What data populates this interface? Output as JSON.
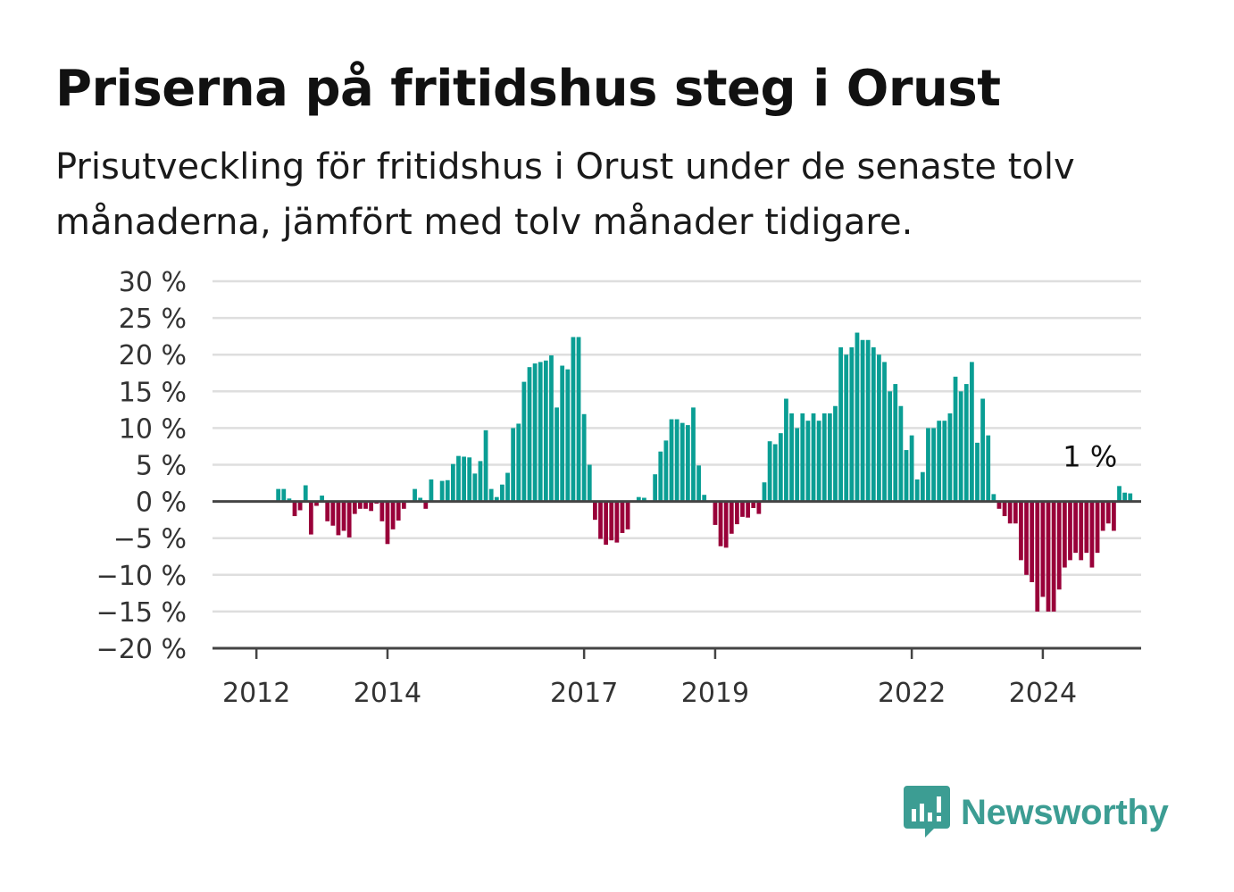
{
  "title": "Priserna på fritidshus steg i Orust",
  "subtitle": "Prisutveckling för fritidshus i Orust under de senaste tolv månaderna, jämfört med tolv månader tidigare.",
  "brand": {
    "name": "Newsworthy",
    "icon": "bar-chart-speech-bubble-icon",
    "color": "#3c9d93"
  },
  "chart_data": {
    "type": "bar",
    "y_ticks": [
      "30 %",
      "25 %",
      "20 %",
      "15 %",
      "10 %",
      "5 %",
      "0 %",
      "−5 %",
      "−10 %",
      "−15 %",
      "−20 %"
    ],
    "ylim": [
      -20,
      30
    ],
    "x_ticks": [
      {
        "label": "2012",
        "x": 2012
      },
      {
        "label": "2014",
        "x": 2014
      },
      {
        "label": "2017",
        "x": 2017
      },
      {
        "label": "2019",
        "x": 2019
      },
      {
        "label": "2022",
        "x": 2022
      },
      {
        "label": "2024",
        "x": 2024
      }
    ],
    "xlim": [
      2011.33,
      2025.5
    ],
    "x_start": 2011.667,
    "x_step": 0.08333,
    "values": [
      0,
      0,
      0,
      0,
      0,
      0,
      0,
      0,
      1.7,
      1.7,
      0.4,
      -2,
      -1.2,
      2.2,
      -4.5,
      -0.6,
      0.8,
      -2.7,
      -3.3,
      -4.6,
      -4,
      -4.9,
      -1.7,
      -1,
      -1,
      -1.3,
      -0.3,
      -2.7,
      -5.8,
      -3.8,
      -2.6,
      -1,
      0,
      1.7,
      0.5,
      -1,
      3,
      0,
      2.8,
      2.9,
      5.1,
      6.2,
      6.1,
      6,
      3.8,
      5.5,
      9.7,
      1.7,
      0.6,
      2.3,
      3.9,
      10,
      10.6,
      16.3,
      18.3,
      18.8,
      19,
      19.2,
      19.9,
      12.8,
      18.5,
      18,
      22.4,
      22.4,
      11.9,
      5,
      -2.5,
      -5.1,
      -5.9,
      -5.3,
      -5.6,
      -4.3,
      -3.8,
      0,
      0.6,
      0.5,
      0,
      3.7,
      6.8,
      8.3,
      11.2,
      11.2,
      10.7,
      10.4,
      12.8,
      4.9,
      0.9,
      0,
      -3.2,
      -6.1,
      -6.3,
      -4.4,
      -3.1,
      -2.1,
      -2.2,
      -0.9,
      -1.7,
      2.6,
      8.2,
      7.8,
      9.3,
      14,
      12,
      10,
      12,
      11,
      12,
      11,
      12,
      12,
      13,
      21,
      20,
      21,
      23,
      22,
      22,
      21,
      20,
      19,
      15,
      16,
      13,
      7,
      9,
      3,
      4,
      10,
      10,
      11,
      11,
      12,
      17,
      15,
      16,
      19,
      8,
      14,
      9,
      1,
      -1,
      -2,
      -3,
      -3,
      -8,
      -10,
      -11,
      -15,
      -13,
      -15,
      -15,
      -12,
      -9,
      -8,
      -7,
      -8,
      -7,
      -9,
      -7,
      -4,
      -3,
      -4,
      2.1,
      1.2,
      1.1
    ],
    "annotation": {
      "text": "1 %",
      "x": 2024.72,
      "y": 1.1
    },
    "colors": {
      "positive": "#0a9e94",
      "negative": "#990039",
      "grid": "#dedede",
      "axis": "#444444"
    },
    "grid": true
  }
}
